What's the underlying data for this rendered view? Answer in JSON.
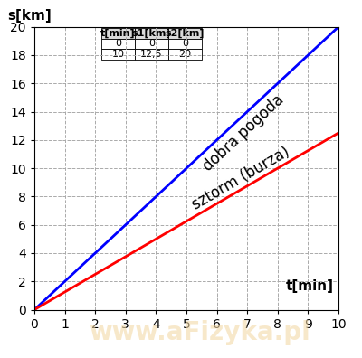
{
  "chart_data": {
    "type": "line",
    "x_label": "t[min]",
    "y_label": "s[km]",
    "x": [
      0,
      10
    ],
    "series": [
      {
        "name": "dobra pogoda",
        "color": "#0000ff",
        "values": [
          0,
          20
        ]
      },
      {
        "name": "sztorm (burza)",
        "color": "#ff0000",
        "values": [
          0,
          12.5
        ]
      }
    ],
    "xlim": [
      0,
      10
    ],
    "ylim": [
      0,
      20
    ],
    "xticks": [
      0,
      1,
      2,
      3,
      4,
      5,
      6,
      7,
      8,
      9,
      10
    ],
    "yticks": [
      0,
      2,
      4,
      6,
      8,
      10,
      12,
      14,
      16,
      18,
      20
    ],
    "grid": true,
    "table": {
      "columns": [
        "t[min]",
        "s1[km]",
        "s2[km]"
      ],
      "rows": [
        [
          "0",
          "0",
          "0"
        ],
        [
          "10",
          "12,5",
          "20"
        ]
      ]
    },
    "watermark": "www.aFizyka.pl"
  }
}
